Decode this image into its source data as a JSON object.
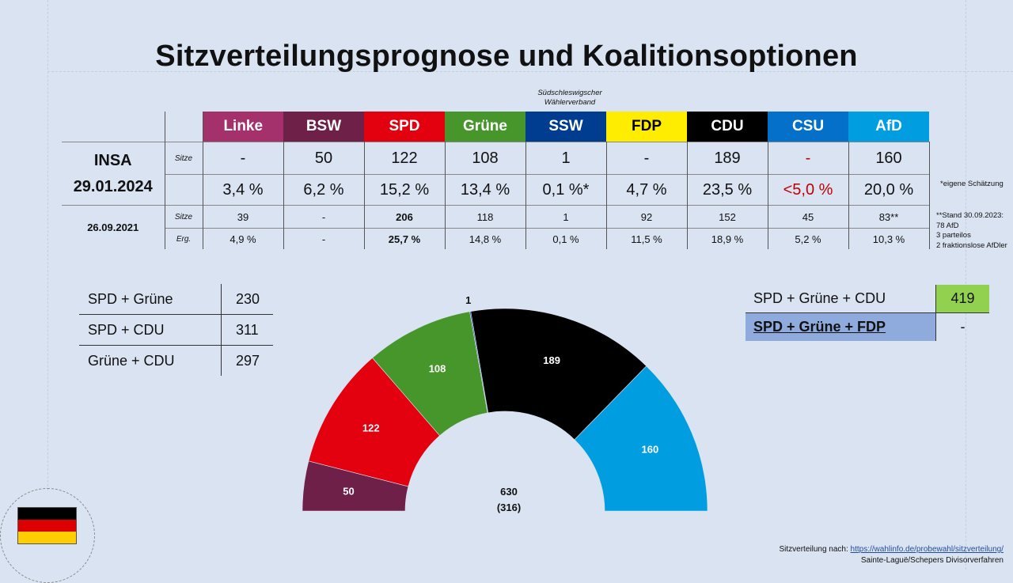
{
  "title": "Sitzverteilungsprognose und Koalitionsoptionen",
  "ssw_note": "Südschleswigscher Wählerverband",
  "parties": [
    {
      "name": "Linke",
      "color": "#a5316c",
      "seats": "-",
      "pct": "3,4 %",
      "seats_2021": "39",
      "pct_2021": "4,9 %"
    },
    {
      "name": "BSW",
      "color": "#6f2049",
      "seats": "50",
      "pct": "6,2 %",
      "seats_2021": "-",
      "pct_2021": "-"
    },
    {
      "name": "SPD",
      "color": "#e3000f",
      "seats": "122",
      "pct": "15,2 %",
      "seats_2021": "206",
      "pct_2021": "25,7 %"
    },
    {
      "name": "Grüne",
      "color": "#46962b",
      "seats": "108",
      "pct": "13,4 %",
      "seats_2021": "118",
      "pct_2021": "14,8 %"
    },
    {
      "name": "SSW",
      "color": "#003c8f",
      "seats": "1",
      "pct": "0,1 %*",
      "seats_2021": "1",
      "pct_2021": "0,1 %"
    },
    {
      "name": "FDP",
      "color": "#ffed00",
      "text_color": "#000000",
      "seats": "-",
      "pct": "4,7 %",
      "seats_2021": "92",
      "pct_2021": "11,5 %"
    },
    {
      "name": "CDU",
      "color": "#000000",
      "seats": "189",
      "pct": "23,5 %",
      "seats_2021": "152",
      "pct_2021": "18,9 %"
    },
    {
      "name": "CSU",
      "color": "#0570c9",
      "seats": "-",
      "pct": "<5,0 %",
      "seats_2021": "45",
      "pct_2021": "5,2 %"
    },
    {
      "name": "AfD",
      "color": "#009ee0",
      "seats": "160",
      "pct": "20,0 %",
      "seats_2021": "83**",
      "pct_2021": "10,3 %"
    }
  ],
  "poll": {
    "institute": "INSA",
    "date": "29.01.2024",
    "seats_label": "Sitze"
  },
  "election": {
    "date": "26.09.2021",
    "seats_label": "Sitze",
    "result_label": "Erg."
  },
  "notes": {
    "estimate": "*eigene Schätzung",
    "stand": [
      "**Stand 30.09.2023:",
      "78 AfD",
      "3 parteilos",
      "2 fraktionslose AfDler"
    ]
  },
  "coalitions_left": [
    {
      "name": "SPD + Grüne",
      "seats": "230"
    },
    {
      "name": "SPD + CDU",
      "seats": "311"
    },
    {
      "name": "Grüne + CDU",
      "seats": "297"
    }
  ],
  "coalitions_right": [
    {
      "name": "SPD + Grüne + CDU",
      "seats": "419"
    },
    {
      "name": "SPD + Grüne + FDP",
      "seats": "-"
    }
  ],
  "chart_data": {
    "type": "pie",
    "subtype": "parliament-semicircle",
    "total_label": "630",
    "majority_label": "(316)",
    "segments": [
      {
        "party": "BSW",
        "seats": 50,
        "color": "#6f2049"
      },
      {
        "party": "SPD",
        "seats": 122,
        "color": "#e3000f"
      },
      {
        "party": "Grüne",
        "seats": 108,
        "color": "#46962b"
      },
      {
        "party": "SSW",
        "seats": 1,
        "color": "#003c8f"
      },
      {
        "party": "CDU",
        "seats": 189,
        "color": "#000000"
      },
      {
        "party": "AfD",
        "seats": 160,
        "color": "#009ee0"
      }
    ]
  },
  "source": {
    "prefix": "Sitzverteilung nach: ",
    "link": "https://wahlinfo.de/probewahl/sitzverteilung/",
    "method": "Sainte-Laguë/Schepers Divisorverfahren"
  }
}
